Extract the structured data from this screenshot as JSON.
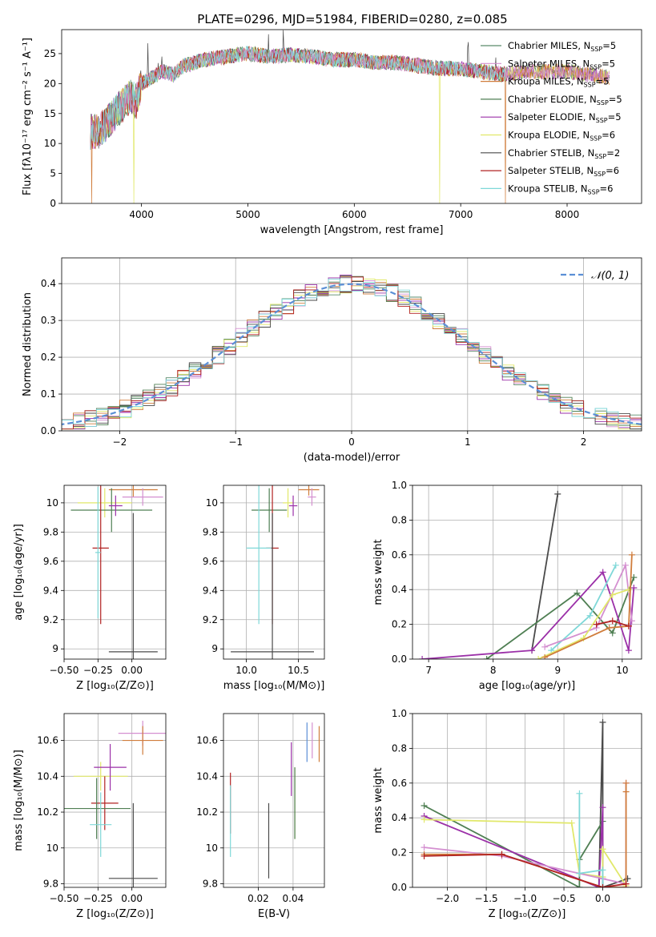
{
  "figure_title": "PLATE=0296, MJD=51984, FIBERID=0280, z=0.085",
  "chart_data": [
    {
      "id": "spectrum",
      "type": "line",
      "title": "PLATE=0296, MJD=51984, FIBERID=0280, z=0.085",
      "xlabel": "wavelength [Angstrom, rest frame]",
      "ylabel": "Flux [fλ10⁻¹⁷ erg cm⁻² s⁻¹ A⁻¹]",
      "xlim": [
        3250,
        8700
      ],
      "ylim": [
        0,
        29
      ],
      "xticks": [
        4000,
        5000,
        6000,
        7000,
        8000
      ],
      "yticks": [
        0,
        5,
        10,
        15,
        20,
        25
      ],
      "grid": false,
      "legend_position": "top-right",
      "series": [
        {
          "name": "Chabrier MILES, N_SSP=5",
          "color": "#5a8a6a"
        },
        {
          "name": "Salpeter MILES, N_SSP=5",
          "color": "#d48fd0"
        },
        {
          "name": "Kroupa MILES, N_SSP=5",
          "color": "#d07d3c"
        },
        {
          "name": "Chabrier ELODIE, N_SSP=5",
          "color": "#4f7f53"
        },
        {
          "name": "Salpeter ELODIE, N_SSP=5",
          "color": "#9b30a8"
        },
        {
          "name": "Kroupa ELODIE, N_SSP=6",
          "color": "#e1e86a"
        },
        {
          "name": "Chabrier STELIB, N_SSP=2",
          "color": "#4a4a4a"
        },
        {
          "name": "Salpeter STELIB, N_SSP=6",
          "color": "#b22222"
        },
        {
          "name": "Kroupa STELIB, N_SSP=6",
          "color": "#7fd8d8"
        }
      ],
      "continuum_shape": [
        [
          3520,
          12
        ],
        [
          3600,
          12
        ],
        [
          3700,
          14
        ],
        [
          3800,
          16
        ],
        [
          3900,
          18
        ],
        [
          3950,
          17
        ],
        [
          4000,
          20
        ],
        [
          4100,
          21
        ],
        [
          4200,
          22
        ],
        [
          4300,
          21.5
        ],
        [
          4400,
          23
        ],
        [
          4600,
          24
        ],
        [
          4800,
          24.5
        ],
        [
          5000,
          25
        ],
        [
          5200,
          24.5
        ],
        [
          5400,
          24.8
        ],
        [
          5600,
          24.5
        ],
        [
          5800,
          24
        ],
        [
          6000,
          24
        ],
        [
          6200,
          23.5
        ],
        [
          6400,
          23.5
        ],
        [
          6600,
          23
        ],
        [
          6800,
          22.5
        ],
        [
          7000,
          22.5
        ],
        [
          7200,
          22
        ],
        [
          7420,
          21.5
        ],
        [
          7600,
          22
        ],
        [
          7800,
          22
        ],
        [
          8000,
          22
        ],
        [
          8200,
          21.5
        ],
        [
          8400,
          21
        ]
      ],
      "stelib_range": [
        3520,
        7420
      ],
      "glitches": [
        {
          "x": 3530,
          "series": 2
        },
        {
          "x": 3930,
          "series": 5
        },
        {
          "x": 6800,
          "series": 5
        },
        {
          "x": 7420,
          "series": 2
        }
      ]
    },
    {
      "id": "residuals",
      "type": "histogram",
      "xlabel": "(data-model)/error",
      "ylabel": "Normed distribution",
      "xlim": [
        -2.5,
        2.5
      ],
      "ylim": [
        0,
        0.47
      ],
      "xticks": [
        -2,
        -1,
        0,
        1,
        2
      ],
      "yticks": [
        0.0,
        0.1,
        0.2,
        0.3,
        0.4
      ],
      "grid": true,
      "legend_position": "top-right",
      "legend": "𝒩(0, 1)",
      "gaussian_color": "#5b8fd6",
      "bin_width": 0.1
    },
    {
      "id": "age_vs_Z",
      "type": "errorbar",
      "xlabel": "Z [log₁₀(Z/Z⊙)]",
      "ylabel": "age  [log₁₀(age/yr)]",
      "xlim": [
        -0.5,
        0.25
      ],
      "ylim": [
        8.93,
        10.12
      ],
      "xticks": [
        -0.5,
        -0.25,
        0.0
      ],
      "xticklabels": [
        "−0.50",
        "−0.25",
        "0.00"
      ],
      "yticks": [
        9.0,
        9.2,
        9.4,
        9.6,
        9.8,
        10.0
      ],
      "grid": true,
      "points": [
        {
          "x": 0.01,
          "y": 10.09,
          "xerr": 0.18,
          "yerr": 0.05,
          "color": "#d07d3c"
        },
        {
          "x": 0.08,
          "y": 10.04,
          "xerr": 0.15,
          "yerr": 0.06,
          "color": "#d48fd0"
        },
        {
          "x": -0.2,
          "y": 10.0,
          "xerr": 0.2,
          "yerr": 0.1,
          "color": "#e1e86a"
        },
        {
          "x": -0.15,
          "y": 9.95,
          "xerr": 0.3,
          "yerr": 0.15,
          "color": "#4f7f53"
        },
        {
          "x": -0.12,
          "y": 9.98,
          "xerr": 0.05,
          "yerr": 0.07,
          "color": "#9b30a8"
        },
        {
          "x": -0.23,
          "y": 9.69,
          "xerr": 0.06,
          "yerr": 0.52,
          "color": "#b22222"
        },
        {
          "x": -0.25,
          "y": 9.66,
          "xerr": 0.02,
          "yerr": 0.45,
          "color": "#7fd8d8"
        },
        {
          "x": 0.01,
          "y": 8.98,
          "xerr": 0.18,
          "yerr": 0.95,
          "color": "#4a4a4a"
        }
      ]
    },
    {
      "id": "age_vs_mass",
      "type": "errorbar",
      "xlabel": "mass [log₁₀(M/M⊙)]",
      "xlim": [
        9.78,
        10.75
      ],
      "ylim": [
        8.93,
        10.12
      ],
      "xticks": [
        10.0,
        10.5
      ],
      "xticklabels": [
        "10.0",
        "10.5"
      ],
      "yticks": [
        9.0,
        9.2,
        9.4,
        9.6,
        9.8,
        10.0
      ],
      "grid": true,
      "points": [
        {
          "x": 10.6,
          "y": 10.09,
          "xerr": 0.1,
          "yerr": 0.04,
          "color": "#d07d3c"
        },
        {
          "x": 10.63,
          "y": 10.04,
          "xerr": 0.04,
          "yerr": 0.06,
          "color": "#d48fd0"
        },
        {
          "x": 10.4,
          "y": 10.0,
          "xerr": 0.05,
          "yerr": 0.1,
          "color": "#e1e86a"
        },
        {
          "x": 10.22,
          "y": 9.95,
          "xerr": 0.17,
          "yerr": 0.15,
          "color": "#4f7f53"
        },
        {
          "x": 10.45,
          "y": 9.98,
          "xerr": 0.04,
          "yerr": 0.07,
          "color": "#9b30a8"
        },
        {
          "x": 10.25,
          "y": 9.69,
          "xerr": 0.06,
          "yerr": 0.52,
          "color": "#b22222"
        },
        {
          "x": 10.12,
          "y": 9.69,
          "xerr": 0.12,
          "yerr": 0.52,
          "color": "#7fd8d8"
        },
        {
          "x": 10.25,
          "y": 8.98,
          "xerr": 0.4,
          "yerr": 0.95,
          "color": "#4a4a4a"
        }
      ]
    },
    {
      "id": "weight_vs_age",
      "type": "line",
      "xlabel": "age  [log₁₀(age/yr)]",
      "ylabel": "mass weight",
      "xlim": [
        6.75,
        10.3
      ],
      "ylim": [
        0,
        1.0
      ],
      "xticks": [
        7,
        8,
        9,
        10
      ],
      "yticks": [
        0.0,
        0.2,
        0.4,
        0.6,
        0.8,
        1.0
      ],
      "grid": true,
      "series": [
        {
          "color": "#4a4a4a",
          "x": [
            8.6,
            9.0
          ],
          "y": [
            0.05,
            0.95
          ]
        },
        {
          "color": "#4f7f53",
          "x": [
            7.9,
            9.3,
            9.85,
            10.18
          ],
          "y": [
            0.0,
            0.38,
            0.15,
            0.47
          ]
        },
        {
          "color": "#9b30a8",
          "x": [
            6.9,
            8.6,
            9.7,
            10.1,
            10.18
          ],
          "y": [
            0.0,
            0.05,
            0.5,
            0.05,
            0.41
          ]
        },
        {
          "color": "#7fd8d8",
          "x": [
            8.9,
            9.5,
            9.9
          ],
          "y": [
            0.05,
            0.25,
            0.54
          ]
        },
        {
          "color": "#d48fd0",
          "x": [
            8.8,
            9.6,
            10.05,
            10.15
          ],
          "y": [
            0.07,
            0.18,
            0.54,
            0.22
          ]
        },
        {
          "color": "#e1e86a",
          "x": [
            8.7,
            9.4,
            9.85,
            10.1
          ],
          "y": [
            0.0,
            0.12,
            0.37,
            0.4
          ]
        },
        {
          "color": "#d07d3c",
          "x": [
            8.8,
            9.8,
            10.1,
            10.15
          ],
          "y": [
            0.01,
            0.18,
            0.19,
            0.6
          ]
        },
        {
          "color": "#b22222",
          "x": [
            9.6,
            9.85,
            10.1
          ],
          "y": [
            0.2,
            0.22,
            0.19
          ]
        }
      ]
    },
    {
      "id": "mass_vs_Z",
      "type": "errorbar",
      "xlabel": "Z [log₁₀(Z/Z⊙)]",
      "ylabel": "mass [log₁₀(M/M⊙)]",
      "xlim": [
        -0.5,
        0.25
      ],
      "ylim": [
        9.78,
        10.75
      ],
      "xticks": [
        -0.5,
        -0.25,
        0.0
      ],
      "xticklabels": [
        "−0.50",
        "−0.25",
        "0.00"
      ],
      "yticks": [
        9.8,
        10.0,
        10.2,
        10.4,
        10.6
      ],
      "grid": true,
      "points": [
        {
          "x": 0.08,
          "y": 10.64,
          "xerr": 0.18,
          "yerr": 0.07,
          "color": "#d48fd0"
        },
        {
          "x": 0.08,
          "y": 10.6,
          "xerr": 0.15,
          "yerr": 0.08,
          "color": "#d07d3c"
        },
        {
          "x": -0.23,
          "y": 10.4,
          "xerr": 0.2,
          "yerr": 0.08,
          "color": "#e1e86a"
        },
        {
          "x": -0.16,
          "y": 10.45,
          "xerr": 0.12,
          "yerr": 0.13,
          "color": "#9b30a8"
        },
        {
          "x": -0.2,
          "y": 10.25,
          "xerr": 0.1,
          "yerr": 0.15,
          "color": "#b22222"
        },
        {
          "x": -0.26,
          "y": 10.22,
          "xerr": 0.25,
          "yerr": 0.17,
          "color": "#4f7f53"
        },
        {
          "x": -0.23,
          "y": 10.13,
          "xerr": 0.08,
          "yerr": 0.18,
          "color": "#7fd8d8"
        },
        {
          "x": 0.01,
          "y": 9.83,
          "xerr": 0.18,
          "yerr": 0.42,
          "color": "#4a4a4a"
        }
      ]
    },
    {
      "id": "mass_vs_ebv",
      "type": "errorbar",
      "xlabel": "E(B-V)",
      "xlim": [
        0.0,
        0.058
      ],
      "ylim": [
        9.78,
        10.75
      ],
      "xticks": [
        0.02,
        0.04
      ],
      "xticklabels": [
        "0.02",
        "0.04"
      ],
      "yticks": [
        9.8,
        10.0,
        10.2,
        10.4,
        10.6
      ],
      "grid": true,
      "points": [
        {
          "x": 0.055,
          "y": 10.58,
          "yerr": 0.1,
          "color": "#d07d3c"
        },
        {
          "x": 0.051,
          "y": 10.6,
          "yerr": 0.1,
          "color": "#d48fd0"
        },
        {
          "x": 0.048,
          "y": 10.59,
          "yerr": 0.11,
          "color": "#5b8fd6"
        },
        {
          "x": 0.039,
          "y": 10.44,
          "yerr": 0.15,
          "color": "#9b30a8"
        },
        {
          "x": 0.041,
          "y": 10.25,
          "yerr": 0.2,
          "color": "#e1e86a"
        },
        {
          "x": 0.041,
          "y": 10.25,
          "yerr": 0.2,
          "color": "#4f7f53"
        },
        {
          "x": 0.026,
          "y": 10.04,
          "yerr": 0.21,
          "color": "#4a4a4a"
        },
        {
          "x": 0.004,
          "y": 10.25,
          "yerr": 0.17,
          "color": "#b22222"
        },
        {
          "x": 0.004,
          "y": 10.15,
          "yerr": 0.2,
          "color": "#7fd8d8"
        }
      ]
    },
    {
      "id": "weight_vs_Z",
      "type": "line",
      "xlabel": "Z [log₁₀(Z/Z⊙)]",
      "ylabel": "mass weight",
      "xlim": [
        -2.45,
        0.5
      ],
      "ylim": [
        0,
        1.0
      ],
      "xticks": [
        -2.0,
        -1.5,
        -1.0,
        -0.5,
        0.0
      ],
      "xticklabels": [
        "−2.0",
        "−1.5",
        "−1.0",
        "−0.5",
        "0.0"
      ],
      "yticks": [
        0.0,
        0.2,
        0.4,
        0.6,
        0.8,
        1.0
      ],
      "grid": true,
      "series": [
        {
          "color": "#4a4a4a",
          "x": [
            -0.05,
            0.0,
            0.0,
            0.32
          ],
          "y": [
            0.0,
            0.95,
            0.0,
            0.05
          ]
        },
        {
          "color": "#4f7f53",
          "x": [
            -2.3,
            -0.3,
            -0.3,
            0.0,
            0.0
          ],
          "y": [
            0.47,
            0.0,
            0.16,
            0.38,
            0.0
          ]
        },
        {
          "color": "#9b30a8",
          "x": [
            -2.3,
            -0.05,
            0.0,
            0.0
          ],
          "y": [
            0.41,
            0.0,
            0.46,
            0.05
          ]
        },
        {
          "color": "#e1e86a",
          "x": [
            -2.3,
            -0.4,
            -0.3,
            0.0,
            0.0,
            0.3
          ],
          "y": [
            0.39,
            0.37,
            0.08,
            0.06,
            0.22,
            0.01
          ]
        },
        {
          "color": "#d48fd0",
          "x": [
            -2.3,
            -1.3,
            0.0,
            0.3,
            0.3
          ],
          "y": [
            0.23,
            0.18,
            0.05,
            0.02,
            0.6
          ]
        },
        {
          "color": "#d07d3c",
          "x": [
            -2.3,
            -1.3,
            0.0,
            0.3,
            0.3,
            0.3
          ],
          "y": [
            0.19,
            0.19,
            0.0,
            0.0,
            0.6,
            0.55
          ]
        },
        {
          "color": "#7fd8d8",
          "x": [
            -0.3,
            -0.3,
            0.0,
            0.0
          ],
          "y": [
            0.54,
            0.08,
            0.1,
            0.0
          ]
        },
        {
          "color": "#b22222",
          "x": [
            -2.3,
            -1.3,
            0.0,
            0.3
          ],
          "y": [
            0.18,
            0.19,
            0.0,
            0.02
          ]
        }
      ]
    }
  ]
}
